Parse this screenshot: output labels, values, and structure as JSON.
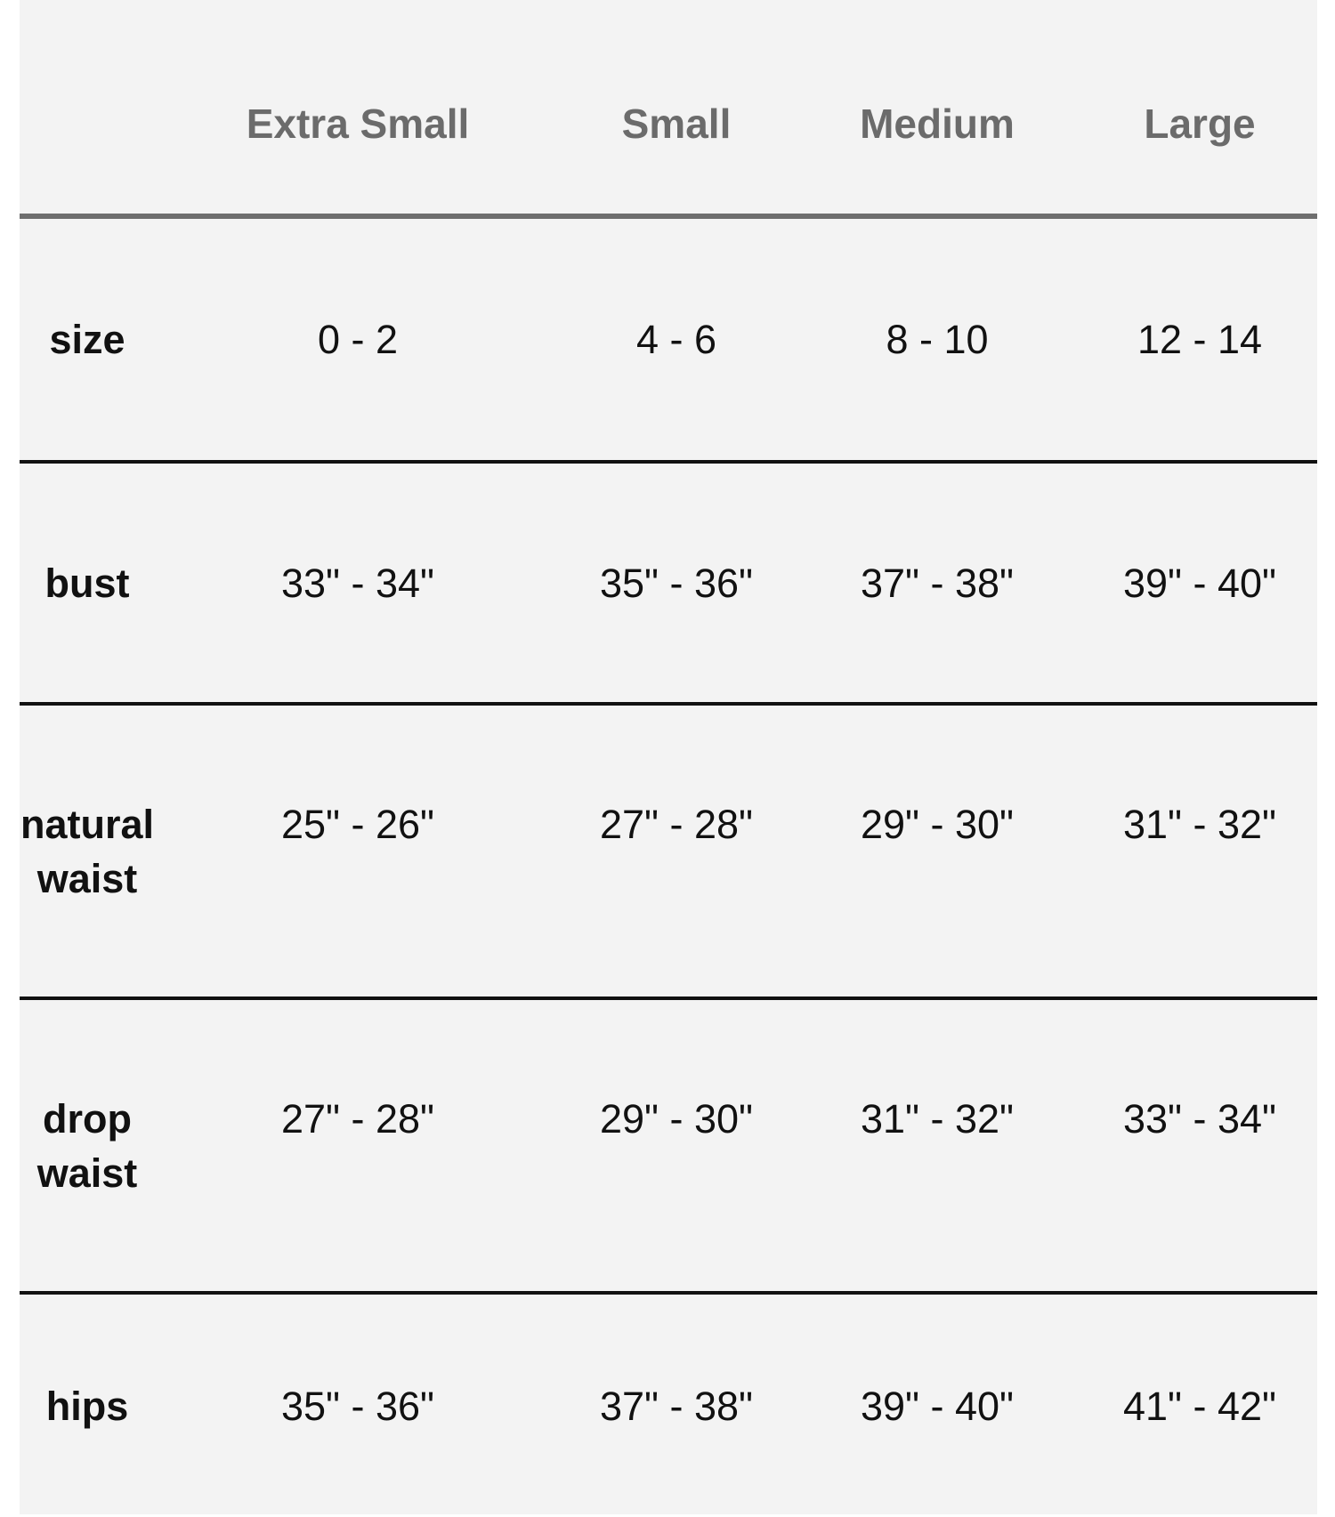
{
  "columns": [
    "",
    "Extra Small",
    "Small",
    "Medium",
    "Large"
  ],
  "rows": [
    {
      "label": [
        "size"
      ],
      "values": [
        "0 - 2",
        "4 - 6",
        "8 - 10",
        "12 - 14"
      ]
    },
    {
      "label": [
        "bust"
      ],
      "values": [
        "33\" - 34\"",
        "35\" - 36\"",
        "37\" - 38\"",
        "39\" - 40\""
      ]
    },
    {
      "label": [
        "natural",
        "waist"
      ],
      "values": [
        "25\" - 26\"",
        "27\" - 28\"",
        "29\" - 30\"",
        "31\" - 32\""
      ]
    },
    {
      "label": [
        "drop",
        "waist"
      ],
      "values": [
        "27\" - 28\"",
        "29\" - 30\"",
        "31\" - 32\"",
        "33\" - 34\""
      ]
    },
    {
      "label": [
        "hips"
      ],
      "values": [
        "35\" - 36\"",
        "37\" - 38\"",
        "39\" - 40\"",
        "41\" - 42\""
      ]
    }
  ],
  "colors": {
    "background": "#f3f3f3",
    "header_text": "#6b6b6b",
    "header_rule": "#6e6e6e",
    "body_text": "#111111"
  }
}
